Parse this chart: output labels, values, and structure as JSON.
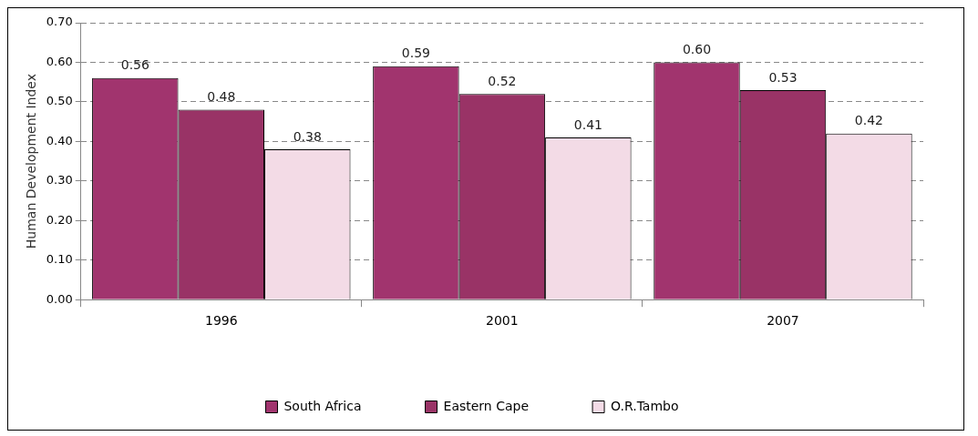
{
  "chart_data": {
    "type": "bar",
    "ylabel": "Human Development Index",
    "categories": [
      "1996",
      "2001",
      "2007"
    ],
    "series": [
      {
        "name": "South Africa",
        "color": "#a1346e",
        "values": [
          0.56,
          0.59,
          0.6
        ],
        "value_labels": [
          "0.56",
          "0.59",
          "0.60"
        ]
      },
      {
        "name": "Eastern Cape",
        "color": "#993366",
        "values": [
          0.48,
          0.52,
          0.53
        ],
        "value_labels": [
          "0.48",
          "0.52",
          "0.53"
        ]
      },
      {
        "name": "O.R.Tambo",
        "color": "#f3dbe6",
        "values": [
          0.38,
          0.41,
          0.42
        ],
        "value_labels": [
          "0.38",
          "0.41",
          "0.42"
        ]
      }
    ],
    "ylim": [
      0,
      0.7
    ],
    "yticks": [
      {
        "value": 0,
        "label": "0.00"
      },
      {
        "value": 0.1,
        "label": "0.10"
      },
      {
        "value": 0.2,
        "label": "0.20"
      },
      {
        "value": 0.3,
        "label": "0.30"
      },
      {
        "value": 0.4,
        "label": "0.40"
      },
      {
        "value": 0.5,
        "label": "0.50"
      },
      {
        "value": 0.6,
        "label": "0.60"
      },
      {
        "value": 0.7,
        "label": "0.70"
      }
    ],
    "grid": "y",
    "legend": "bottom"
  }
}
